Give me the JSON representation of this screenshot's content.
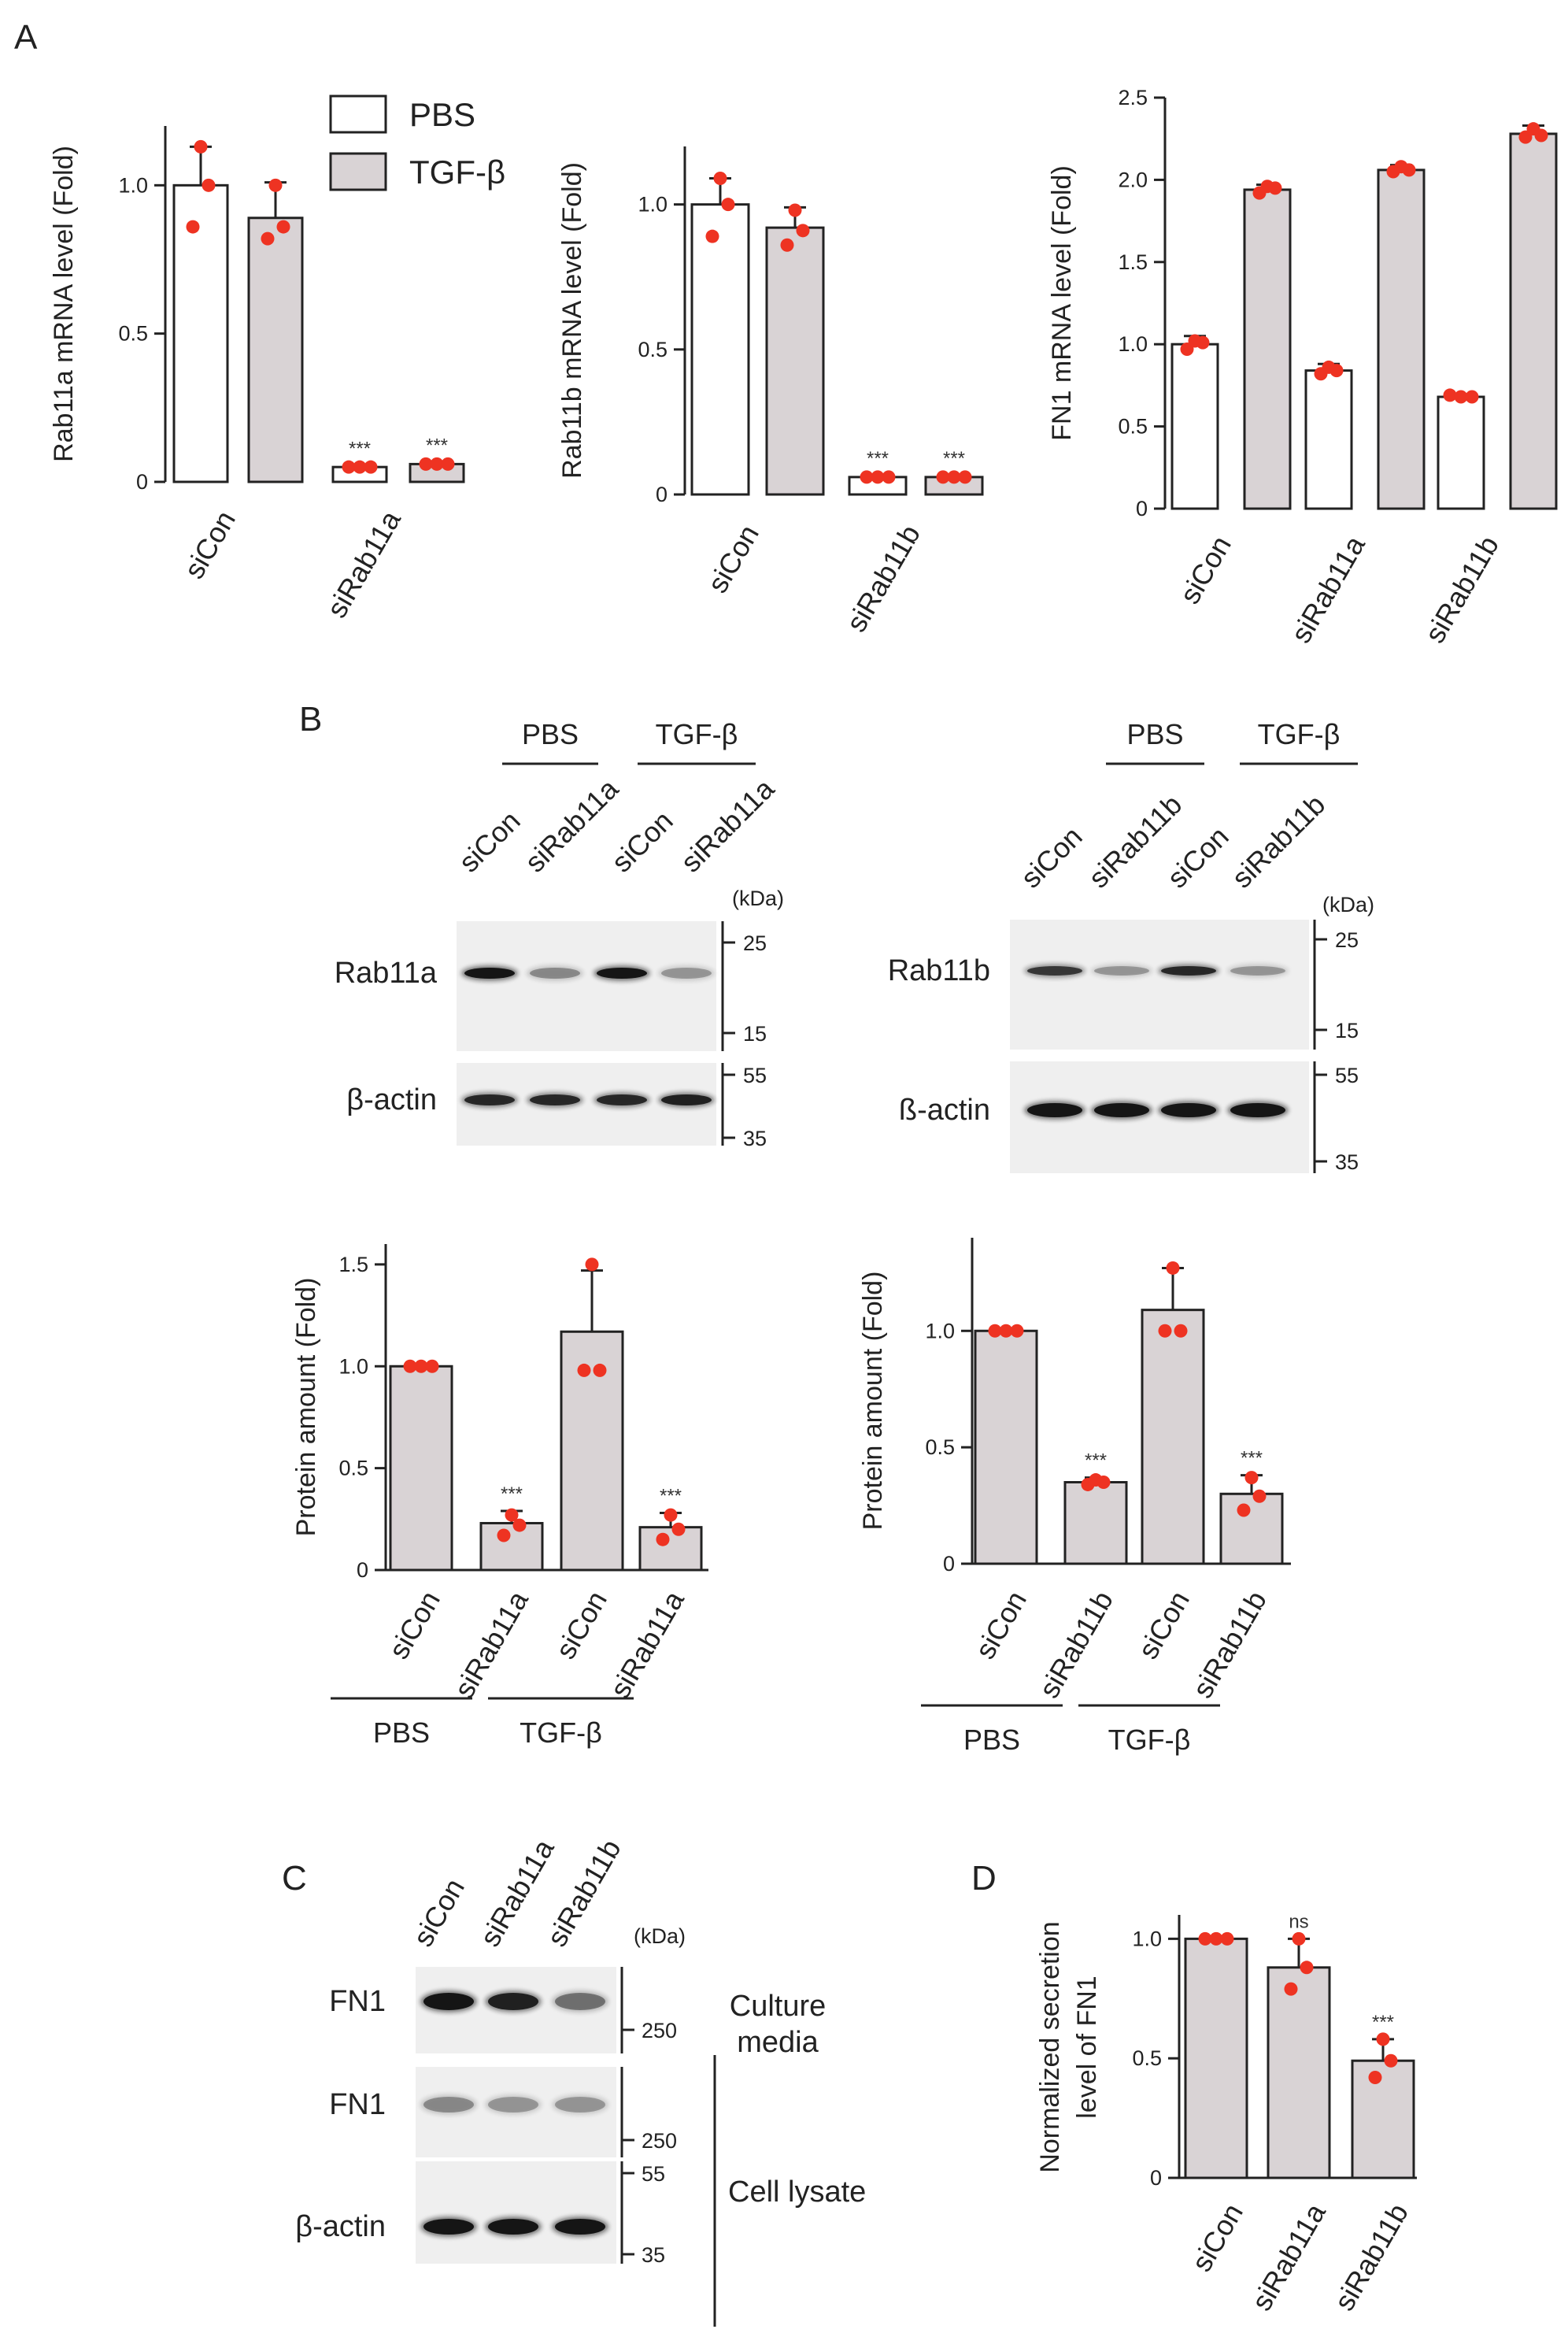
{
  "figure": {
    "panel_labels": [
      "A",
      "B",
      "C",
      "D"
    ]
  },
  "colors": {
    "pbs_fill": "#ffffff",
    "tgf_fill": "#d9d3d5",
    "bar_stroke": "#222222",
    "dot": "#ee3322",
    "blot_bg": "#efefef",
    "band": "#151515"
  },
  "legend": {
    "pbs": "PBS",
    "tgf": "TGF-β"
  },
  "charts": {
    "a1": {
      "ylabel": "Rab11a mRNA level (Fold)",
      "ylim": [
        0,
        1.2
      ],
      "ticks": [
        0,
        0.5,
        1.0
      ],
      "tick_labels": [
        "0",
        "0.5",
        "1.0"
      ],
      "categories": [
        "siCon",
        "siRab11a"
      ],
      "bars": [
        {
          "group": 0,
          "fill": "pbs",
          "value": 1.0,
          "err": 0.13,
          "points": [
            1.13,
            0.86,
            1.0
          ],
          "sig": ""
        },
        {
          "group": 0,
          "fill": "tgf",
          "value": 0.89,
          "err": 0.12,
          "points": [
            1.0,
            0.82,
            0.86
          ],
          "sig": ""
        },
        {
          "group": 1,
          "fill": "pbs",
          "value": 0.05,
          "err": 0.005,
          "points": [
            0.05,
            0.05,
            0.05
          ],
          "sig": "***"
        },
        {
          "group": 1,
          "fill": "tgf",
          "value": 0.06,
          "err": 0.005,
          "points": [
            0.06,
            0.06,
            0.06
          ],
          "sig": "***"
        }
      ]
    },
    "a2": {
      "ylabel": "Rab11b mRNA level (Fold)",
      "ylim": [
        0,
        1.2
      ],
      "ticks": [
        0,
        0.5,
        1.0
      ],
      "tick_labels": [
        "0",
        "0.5",
        "1.0"
      ],
      "categories": [
        "siCon",
        "siRab11b"
      ],
      "bars": [
        {
          "group": 0,
          "fill": "pbs",
          "value": 1.0,
          "err": 0.09,
          "points": [
            1.09,
            0.89,
            1.0
          ],
          "sig": ""
        },
        {
          "group": 0,
          "fill": "tgf",
          "value": 0.92,
          "err": 0.07,
          "points": [
            0.98,
            0.86,
            0.91
          ],
          "sig": ""
        },
        {
          "group": 1,
          "fill": "pbs",
          "value": 0.06,
          "err": 0.005,
          "points": [
            0.06,
            0.06,
            0.06
          ],
          "sig": "***"
        },
        {
          "group": 1,
          "fill": "tgf",
          "value": 0.06,
          "err": 0.005,
          "points": [
            0.06,
            0.06,
            0.06
          ],
          "sig": "***"
        }
      ]
    },
    "a3": {
      "ylabel": "FN1 mRNA level (Fold)",
      "ylim": [
        0,
        2.5
      ],
      "ticks": [
        0,
        0.5,
        1.0,
        1.5,
        2.0,
        2.5
      ],
      "tick_labels": [
        "0",
        "0.5",
        "1.0",
        "1.5",
        "2.0",
        "2.5"
      ],
      "categories": [
        "siCon",
        "siRab11a",
        "siRab11b"
      ],
      "bars": [
        {
          "group": 0,
          "fill": "pbs",
          "value": 1.0,
          "err": 0.05,
          "points": [
            1.02,
            0.97,
            1.01
          ],
          "sig": ""
        },
        {
          "group": 0,
          "fill": "tgf",
          "value": 1.94,
          "err": 0.03,
          "points": [
            1.96,
            1.92,
            1.95
          ],
          "sig": ""
        },
        {
          "group": 1,
          "fill": "pbs",
          "value": 0.84,
          "err": 0.04,
          "points": [
            0.86,
            0.82,
            0.84
          ],
          "sig": ""
        },
        {
          "group": 1,
          "fill": "tgf",
          "value": 2.06,
          "err": 0.03,
          "points": [
            2.08,
            2.05,
            2.06
          ],
          "sig": ""
        },
        {
          "group": 2,
          "fill": "pbs",
          "value": 0.68,
          "err": 0.015,
          "points": [
            0.69,
            0.68,
            0.68
          ],
          "sig": ""
        },
        {
          "group": 2,
          "fill": "tgf",
          "value": 2.28,
          "err": 0.05,
          "points": [
            2.31,
            2.26,
            2.27
          ],
          "sig": ""
        }
      ]
    },
    "b1": {
      "ylabel": "Protein amount (Fold)",
      "ylim": [
        0,
        1.6
      ],
      "ticks": [
        0,
        0.5,
        1.0,
        1.5
      ],
      "tick_labels": [
        "0",
        "0.5",
        "1.0",
        "1.5"
      ],
      "categories": [
        "siCon",
        "siRab11a",
        "siCon",
        "siRab11a"
      ],
      "groups": [
        "PBS",
        "TGF-β"
      ],
      "bars": [
        {
          "value": 1.0,
          "err": 0.0,
          "points": [
            1.0,
            1.0,
            1.0
          ],
          "sig": ""
        },
        {
          "value": 0.23,
          "err": 0.06,
          "points": [
            0.27,
            0.17,
            0.22
          ],
          "sig": "***"
        },
        {
          "value": 1.17,
          "err": 0.3,
          "points": [
            1.5,
            0.98,
            0.98
          ],
          "sig": ""
        },
        {
          "value": 0.21,
          "err": 0.07,
          "points": [
            0.27,
            0.15,
            0.2
          ],
          "sig": "***"
        }
      ]
    },
    "b2": {
      "ylabel": "Protein amount (Fold)",
      "ylim": [
        0,
        1.4
      ],
      "ticks": [
        0,
        0.5,
        1.0
      ],
      "tick_labels": [
        "0",
        "0.5",
        "1.0"
      ],
      "categories": [
        "siCon",
        "siRab11b",
        "siCon",
        "siRab11b"
      ],
      "groups": [
        "PBS",
        "TGF-β"
      ],
      "bars": [
        {
          "value": 1.0,
          "err": 0.0,
          "points": [
            1.0,
            1.0,
            1.0
          ],
          "sig": ""
        },
        {
          "value": 0.35,
          "err": 0.02,
          "points": [
            0.36,
            0.34,
            0.35
          ],
          "sig": "***"
        },
        {
          "value": 1.09,
          "err": 0.18,
          "points": [
            1.27,
            1.0,
            1.0
          ],
          "sig": ""
        },
        {
          "value": 0.3,
          "err": 0.08,
          "points": [
            0.37,
            0.23,
            0.29
          ],
          "sig": "***"
        }
      ]
    },
    "d": {
      "ylabel1": "Normalized secretion",
      "ylabel2": "level of FN1",
      "ylim": [
        0,
        1.1
      ],
      "ticks": [
        0,
        0.5,
        1.0
      ],
      "tick_labels": [
        "0",
        "0.5",
        "1.0"
      ],
      "categories": [
        "siCon",
        "siRab11a",
        "siRab11b"
      ],
      "bars": [
        {
          "value": 1.0,
          "err": 0.0,
          "points": [
            1.0,
            1.0,
            1.0
          ],
          "sig": ""
        },
        {
          "value": 0.88,
          "err": 0.12,
          "points": [
            1.0,
            0.79,
            0.88
          ],
          "sig": "ns"
        },
        {
          "value": 0.49,
          "err": 0.09,
          "points": [
            0.58,
            0.42,
            0.49
          ],
          "sig": "***"
        }
      ]
    }
  },
  "blots": {
    "b_left": {
      "group_labels": [
        "PBS",
        "TGF-β"
      ],
      "lanes": [
        "siCon",
        "siRab11a",
        "siCon",
        "siRab11a"
      ],
      "kda_unit": "(kDa)",
      "rows": [
        {
          "label": "Rab11a",
          "markers": [
            "25",
            "15"
          ],
          "intensity": [
            1.0,
            0.35,
            1.0,
            0.3
          ]
        },
        {
          "label": "β-actin",
          "markers": [
            "55",
            "35"
          ],
          "intensity": [
            0.85,
            0.85,
            0.85,
            0.9
          ]
        }
      ]
    },
    "b_right": {
      "group_labels": [
        "PBS",
        "TGF-β"
      ],
      "lanes": [
        "siCon",
        "siRab11b",
        "siCon",
        "siRab11b"
      ],
      "kda_unit": "(kDa)",
      "rows": [
        {
          "label": "Rab11b",
          "markers": [
            "25",
            "15"
          ],
          "intensity": [
            0.75,
            0.3,
            0.85,
            0.3
          ]
        },
        {
          "label": "ß-actin",
          "markers": [
            "55",
            "35"
          ],
          "intensity": [
            1.0,
            1.0,
            1.0,
            1.0
          ]
        }
      ]
    },
    "c": {
      "lanes": [
        "siCon",
        "siRab11a",
        "siRab11b"
      ],
      "kda_unit": "(kDa)",
      "rows": [
        {
          "label": "FN1",
          "markers": [
            "250"
          ],
          "intensity": [
            1.0,
            0.9,
            0.45
          ]
        },
        {
          "label": "FN1",
          "markers": [
            "250"
          ],
          "intensity": [
            0.35,
            0.3,
            0.3
          ]
        },
        {
          "label": "β-actin",
          "markers": [
            "55",
            "35"
          ],
          "intensity": [
            1.0,
            1.0,
            1.0
          ]
        }
      ],
      "side_labels": [
        "Culture",
        "media",
        "Cell lysate"
      ]
    }
  }
}
